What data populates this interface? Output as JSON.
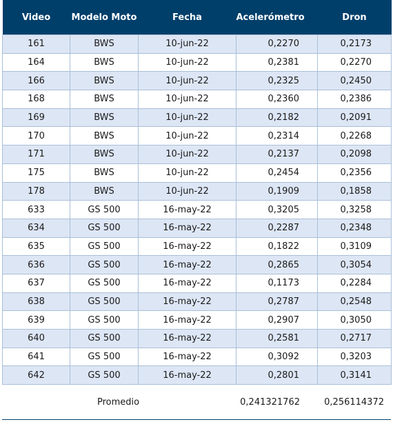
{
  "headers": [
    "Video",
    "Modelo Moto",
    "Fecha",
    "Acelerómetro",
    "Dron"
  ],
  "rows": [
    [
      "161",
      "BWS",
      "10-jun-22",
      "0,2270",
      "0,2173"
    ],
    [
      "164",
      "BWS",
      "10-jun-22",
      "0,2381",
      "0,2270"
    ],
    [
      "166",
      "BWS",
      "10-jun-22",
      "0,2325",
      "0,2450"
    ],
    [
      "168",
      "BWS",
      "10-jun-22",
      "0,2360",
      "0,2386"
    ],
    [
      "169",
      "BWS",
      "10-jun-22",
      "0,2182",
      "0,2091"
    ],
    [
      "170",
      "BWS",
      "10-jun-22",
      "0,2314",
      "0,2268"
    ],
    [
      "171",
      "BWS",
      "10-jun-22",
      "0,2137",
      "0,2098"
    ],
    [
      "175",
      "BWS",
      "10-jun-22",
      "0,2454",
      "0,2356"
    ],
    [
      "178",
      "BWS",
      "10-jun-22",
      "0,1909",
      "0,1858"
    ],
    [
      "633",
      "GS 500",
      "16-may-22",
      "0,3205",
      "0,3258"
    ],
    [
      "634",
      "GS 500",
      "16-may-22",
      "0,2287",
      "0,2348"
    ],
    [
      "635",
      "GS 500",
      "16-may-22",
      "0,1822",
      "0,3109"
    ],
    [
      "636",
      "GS 500",
      "16-may-22",
      "0,2865",
      "0,3054"
    ],
    [
      "637",
      "GS 500",
      "16-may-22",
      "0,1173",
      "0,2284"
    ],
    [
      "638",
      "GS 500",
      "16-may-22",
      "0,2787",
      "0,2548"
    ],
    [
      "639",
      "GS 500",
      "16-may-22",
      "0,2907",
      "0,3050"
    ],
    [
      "640",
      "GS 500",
      "16-may-22",
      "0,2581",
      "0,2717"
    ],
    [
      "641",
      "GS 500",
      "16-may-22",
      "0,3092",
      "0,3203"
    ],
    [
      "642",
      "GS 500",
      "16-may-22",
      "0,2801",
      "0,3141"
    ]
  ],
  "footer": {
    "label": "Promedio",
    "acelerometro": "0,241321762",
    "dron": "0,256114372"
  },
  "colors": {
    "header_bg": "#013f6b",
    "row_alt_bg": "#dde6f5",
    "border": "#a9bfd8"
  }
}
